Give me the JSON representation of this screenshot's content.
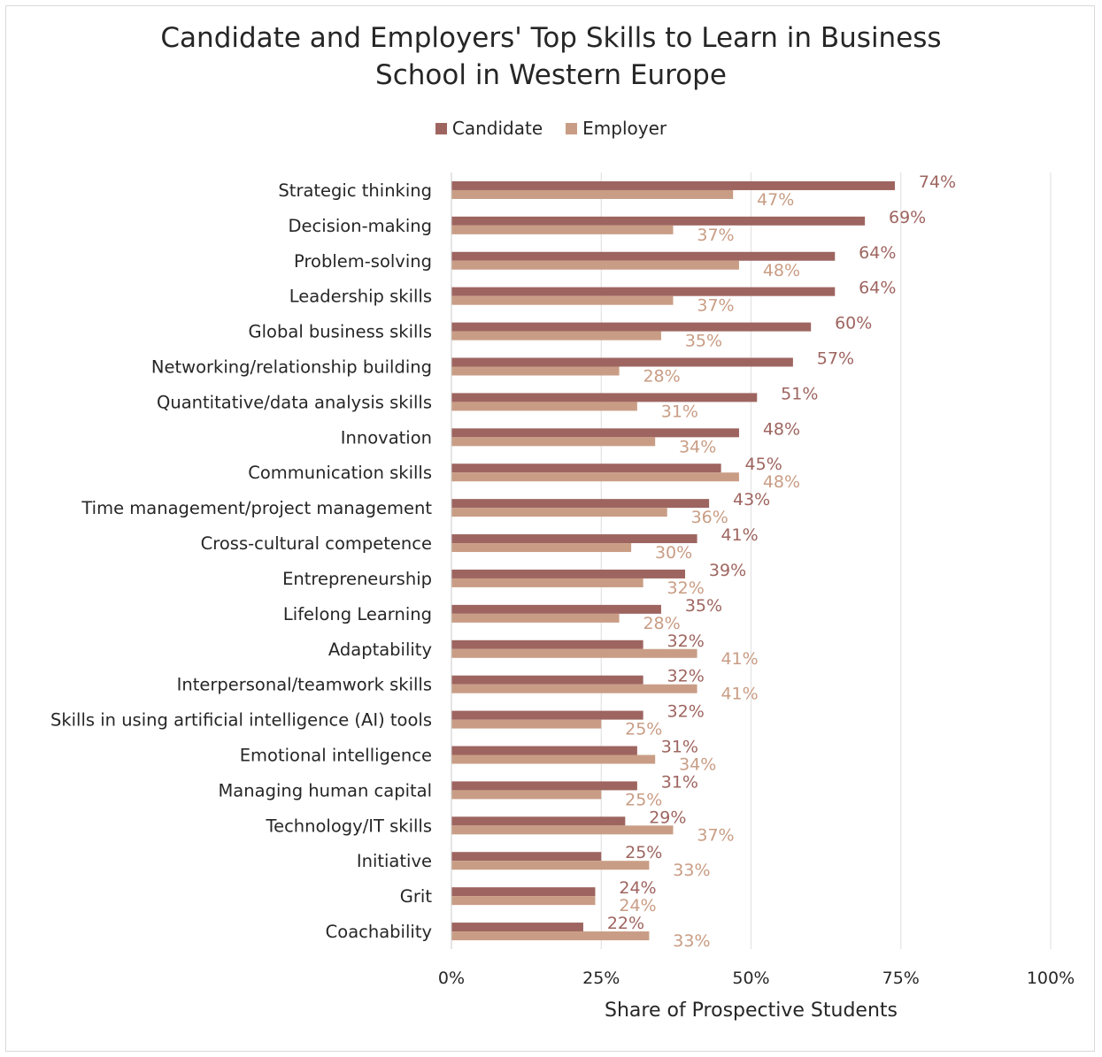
{
  "chart_data": {
    "type": "bar",
    "orientation": "horizontal",
    "title_lines": [
      "Candidate and Employers' Top Skills to Learn in Business",
      "School in Western Europe"
    ],
    "xlabel": "Share of Prospective Students",
    "ylabel": "",
    "xlim": [
      0,
      100
    ],
    "x_ticks": [
      "0%",
      "25%",
      "50%",
      "75%",
      "100%"
    ],
    "x_tick_values": [
      0,
      25,
      50,
      75,
      100
    ],
    "grid": "vertical",
    "legend_position": "top",
    "categories": [
      "Strategic thinking",
      "Decision-making",
      "Problem-solving",
      "Leadership skills",
      "Global business skills",
      "Networking/relationship building",
      "Quantitative/data analysis skills",
      "Innovation",
      "Communication skills",
      "Time management/project management",
      "Cross-cultural competence",
      "Entrepreneurship",
      "Lifelong Learning",
      "Adaptability",
      "Interpersonal/teamwork skills",
      "Skills in using artificial intelligence (AI) tools",
      "Emotional intelligence",
      "Managing human capital",
      "Technology/IT skills",
      "Initiative",
      "Grit",
      "Coachability"
    ],
    "series": [
      {
        "name": "Candidate",
        "color": "#9e6560",
        "values": [
          74,
          69,
          64,
          64,
          60,
          57,
          51,
          48,
          45,
          43,
          41,
          39,
          35,
          32,
          32,
          32,
          31,
          31,
          29,
          25,
          24,
          22
        ],
        "labels": [
          "74%",
          "69%",
          "64%",
          "64%",
          "60%",
          "57%",
          "51%",
          "48%",
          "45%",
          "43%",
          "41%",
          "39%",
          "35%",
          "32%",
          "32%",
          "32%",
          "31%",
          "31%",
          "29%",
          "25%",
          "24%",
          "22%"
        ]
      },
      {
        "name": "Employer",
        "color": "#c99d85",
        "values": [
          47,
          37,
          48,
          37,
          35,
          28,
          31,
          34,
          48,
          36,
          30,
          32,
          28,
          41,
          41,
          25,
          34,
          25,
          37,
          33,
          24,
          33
        ],
        "labels": [
          "47%",
          "37%",
          "48%",
          "37%",
          "35%",
          "28%",
          "31%",
          "34%",
          "48%",
          "36%",
          "30%",
          "32%",
          "28%",
          "41%",
          "41%",
          "25%",
          "34%",
          "25%",
          "37%",
          "33%",
          "24%",
          "33%"
        ]
      }
    ]
  }
}
